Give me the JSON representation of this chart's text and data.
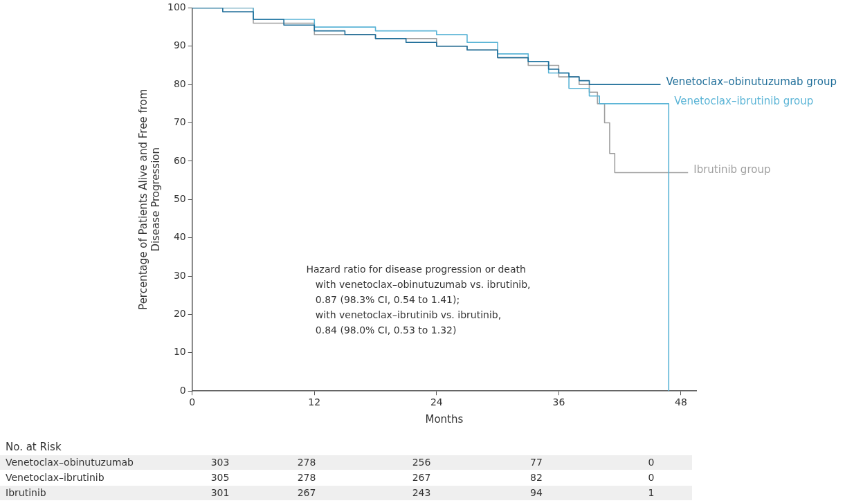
{
  "chart_data": {
    "type": "step",
    "xlabel": "Months",
    "ylabel": "Percentage of Patients Alive and Free from\nDisease Progression",
    "xlim": [
      0,
      49.5
    ],
    "xticks": [
      0,
      12,
      24,
      36,
      48
    ],
    "ylim": [
      0,
      100
    ],
    "yticks": [
      0,
      10,
      20,
      30,
      40,
      50,
      60,
      70,
      80,
      90,
      100
    ],
    "grid": false,
    "series": [
      {
        "name": "Venetoclax–obinutuzumab group",
        "color": "#1f6e99",
        "x": [
          0,
          3,
          6,
          9,
          12,
          15,
          18,
          21,
          24,
          27,
          30,
          33,
          35,
          36,
          37,
          38,
          39,
          46
        ],
        "values": [
          100,
          99,
          97,
          95.5,
          94,
          93,
          92,
          91,
          90,
          89,
          87,
          86,
          84,
          83,
          82,
          81,
          80,
          80
        ]
      },
      {
        "name": "Venetoclax–ibrutinib group",
        "color": "#5ab4d6",
        "x": [
          0,
          6,
          12,
          18,
          24,
          26,
          27,
          30,
          33,
          35,
          37,
          39,
          40,
          46.8,
          46.8
        ],
        "values": [
          100,
          97,
          95,
          94,
          93,
          93,
          91,
          88,
          86,
          83,
          79,
          77,
          75,
          75,
          0
        ]
      },
      {
        "name": "Ibrutinib group",
        "color": "#a0a0a0",
        "x": [
          0,
          6,
          12,
          18,
          24,
          27,
          30,
          33,
          36,
          38,
          39,
          39.8,
          40.5,
          41,
          41.5,
          48.7
        ],
        "values": [
          100,
          96,
          93,
          92,
          90,
          89,
          87,
          85,
          82,
          80,
          78,
          75,
          70,
          62,
          57,
          57
        ]
      }
    ],
    "annotations": [
      "Hazard ratio for disease progression or death\n   with venetoclax–obinutuzumab vs. ibrutinib,\n   0.87 (98.3% CI, 0.54 to 1.41);\n   with venetoclax–ibrutinib vs. ibrutinib,\n   0.84 (98.0% CI, 0.53 to 1.32)",
      "No. at Risk",
      "Venetoclax–obinutuzumab",
      "303",
      "278",
      "256",
      "77",
      "0",
      "Venetoclax–ibrutinib",
      "305",
      "278",
      "267",
      "82",
      "0",
      "Ibrutinib",
      "301",
      "267",
      "243",
      "94",
      "1"
    ]
  }
}
